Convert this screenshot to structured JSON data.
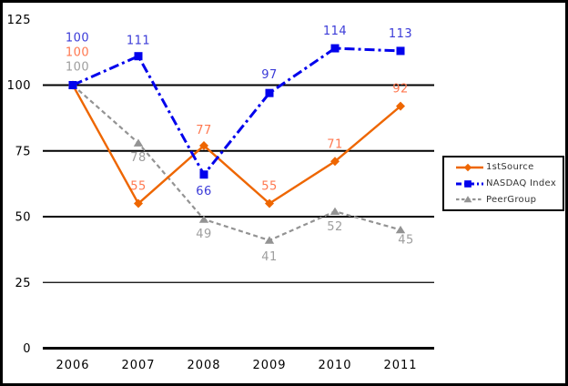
{
  "frame": {
    "background": "#FFFFFF",
    "border_color": "#000000"
  },
  "chart_data": {
    "type": "line",
    "title": "",
    "xlabel": "",
    "ylabel": "",
    "x_categories": [
      "2006",
      "2007",
      "2008",
      "2009",
      "2010",
      "2011"
    ],
    "y_ticks": [
      0,
      25,
      50,
      75,
      100,
      125
    ],
    "ylim": [
      0,
      125
    ],
    "grid": "horizontal-only",
    "gridline_color": "#000000",
    "legend_position": "middle-right",
    "series": [
      {
        "name": "1stSource",
        "marker": "diamond",
        "line_style": "solid",
        "color": "#EE6600",
        "label_color": "#FF7850",
        "values": [
          100,
          55,
          77,
          55,
          71,
          92
        ],
        "label_offsets": [
          [
            5,
            -32
          ],
          [
            0,
            -15
          ],
          [
            0,
            -13
          ],
          [
            0,
            -15
          ],
          [
            0,
            -15
          ],
          [
            0,
            -15
          ]
        ]
      },
      {
        "name": "NASDAQ Index",
        "marker": "square",
        "line_style": "dash-dot",
        "color": "#0202EC",
        "label_color": "#3B3BD8",
        "values": [
          100,
          111,
          66,
          97,
          114,
          113
        ],
        "label_offsets": [
          [
            5,
            -48
          ],
          [
            0,
            -13
          ],
          [
            0,
            22
          ],
          [
            0,
            -16
          ],
          [
            0,
            -15
          ],
          [
            0,
            -15
          ]
        ]
      },
      {
        "name": "PeerGroup",
        "marker": "triangle",
        "line_style": "dashed",
        "color": "#939393",
        "label_color": "#9E9E9E",
        "values": [
          100,
          78,
          49,
          41,
          52,
          45
        ],
        "label_offsets": [
          [
            5,
            -16
          ],
          [
            0,
            20
          ],
          [
            0,
            20
          ],
          [
            0,
            22
          ],
          [
            0,
            21
          ],
          [
            6,
            15
          ]
        ]
      }
    ]
  }
}
